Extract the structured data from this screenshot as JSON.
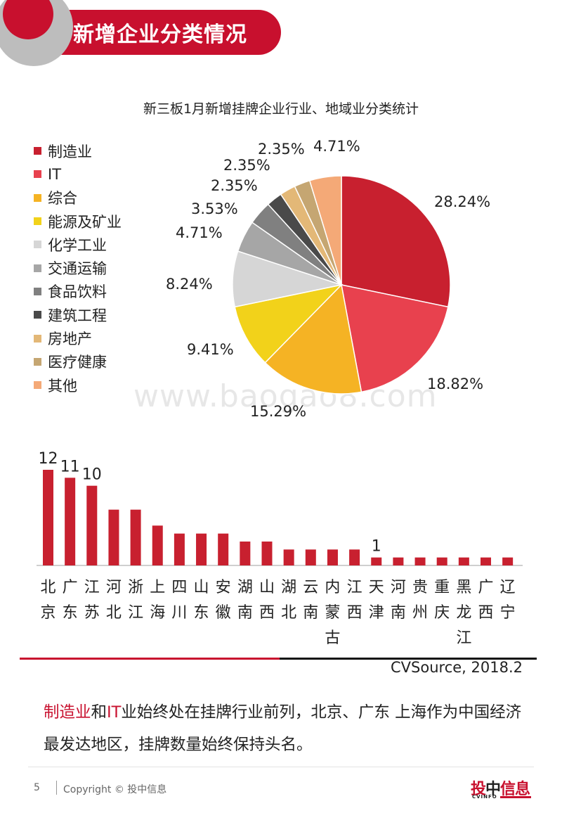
{
  "header": {
    "title": "新增企业分类情况"
  },
  "pie_chart": {
    "title": "新三板1月新增挂牌企业行业、地域业分类统计",
    "labels": [
      "28.24%",
      "18.82%",
      "15.29%",
      "9.41%",
      "8.24%",
      "4.71%",
      "3.53%",
      "2.35%",
      "2.35%",
      "2.35%",
      "4.71%"
    ]
  },
  "watermark": "www.baogao8.com",
  "chart_data": [
    {
      "type": "pie",
      "title": "新三板1月新增挂牌企业行业、地域业分类统计",
      "categories": [
        "制造业",
        "IT",
        "综合",
        "能源及矿业",
        "化学工业",
        "交通运输",
        "食品饮料",
        "建筑工程",
        "房地产",
        "医疗健康",
        "其他"
      ],
      "values": [
        28.24,
        18.82,
        15.29,
        9.41,
        8.24,
        4.71,
        3.53,
        2.35,
        2.35,
        2.35,
        4.71
      ],
      "colors": [
        "#c8202f",
        "#e8414e",
        "#f5b324",
        "#f2d21a",
        "#d6d6d6",
        "#a6a6a6",
        "#808080",
        "#4a4a4a",
        "#e3b877",
        "#c5a672",
        "#f4a977"
      ],
      "legend_position": "left"
    },
    {
      "type": "bar",
      "categories": [
        "北京",
        "广东",
        "江苏",
        "河北",
        "浙江",
        "上海",
        "四川",
        "山东",
        "安徽",
        "湖南",
        "山西",
        "湖北",
        "云南",
        "内蒙古",
        "江西",
        "天津",
        "河南",
        "贵州",
        "重庆",
        "黑龙江",
        "广西",
        "辽宁"
      ],
      "values": [
        12,
        11,
        10,
        7,
        7,
        5,
        4,
        4,
        4,
        3,
        3,
        2,
        2,
        2,
        2,
        1,
        1,
        1,
        1,
        1,
        1,
        1
      ],
      "data_labels": [
        {
          "index": 0,
          "text": "12"
        },
        {
          "index": 1,
          "text": "11"
        },
        {
          "index": 2,
          "text": "10"
        },
        {
          "index": 15,
          "text": "1"
        }
      ],
      "color": "#c8202f",
      "ylim": [
        0,
        12
      ]
    }
  ],
  "source": "CVSource, 2018.2",
  "summary": {
    "hl1": "制造业",
    "t1": "和",
    "hl2": "IT",
    "t2": "业始终处在挂牌行业前列，北京、广东 上海作为中国经济最发达地区，挂牌数量始终保持头名。"
  },
  "footer": {
    "page": "5",
    "copyright": "Copyright © 投中信息",
    "logo_a": "投",
    "logo_b": "中",
    "logo_c": "信息",
    "logo_sub": "CVINFO"
  }
}
